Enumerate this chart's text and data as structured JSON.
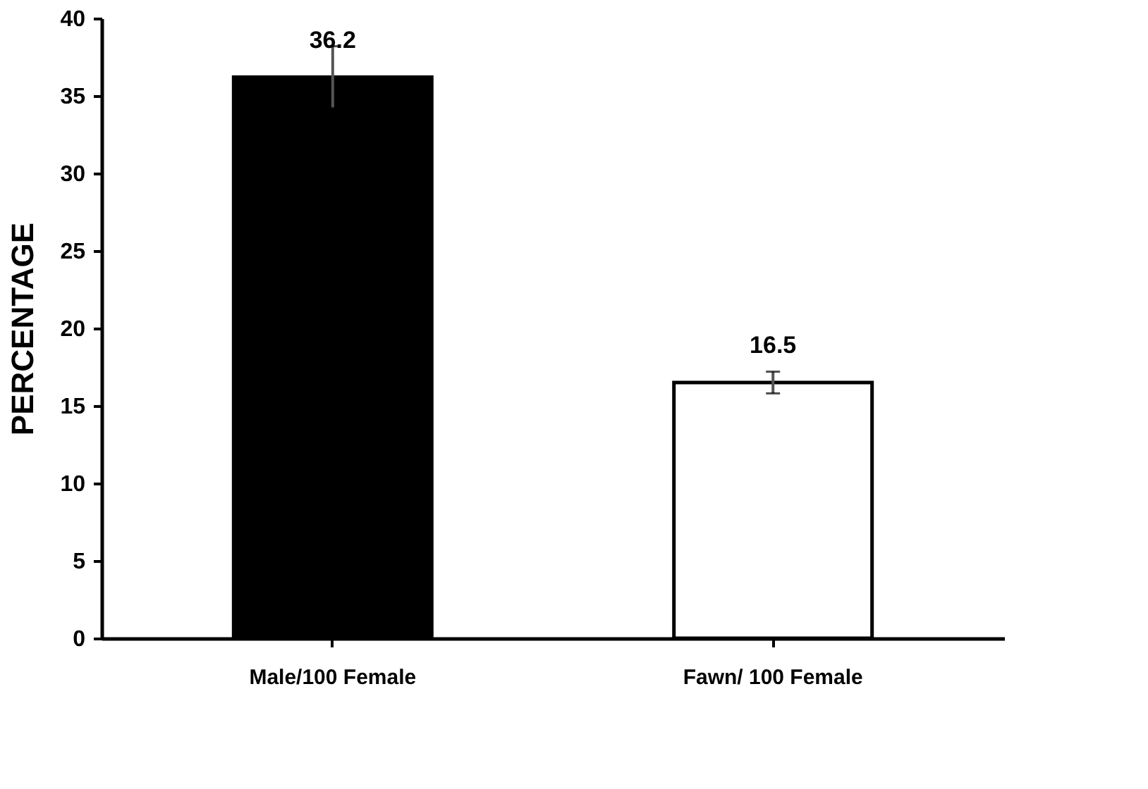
{
  "chart_data": {
    "type": "bar",
    "ylabel": "PERCENTAGE",
    "categories": [
      "Male/100 Female",
      "Fawn/ 100 Female"
    ],
    "values": [
      36.2,
      16.5
    ],
    "colors": [
      "#000000",
      "#ffffff"
    ],
    "errors": [
      2,
      0.7
    ],
    "data_labels": true,
    "ylim": [
      0,
      40
    ],
    "yticks": [
      0,
      5,
      10,
      15,
      20,
      25,
      30,
      35,
      40
    ],
    "grid": false
  }
}
